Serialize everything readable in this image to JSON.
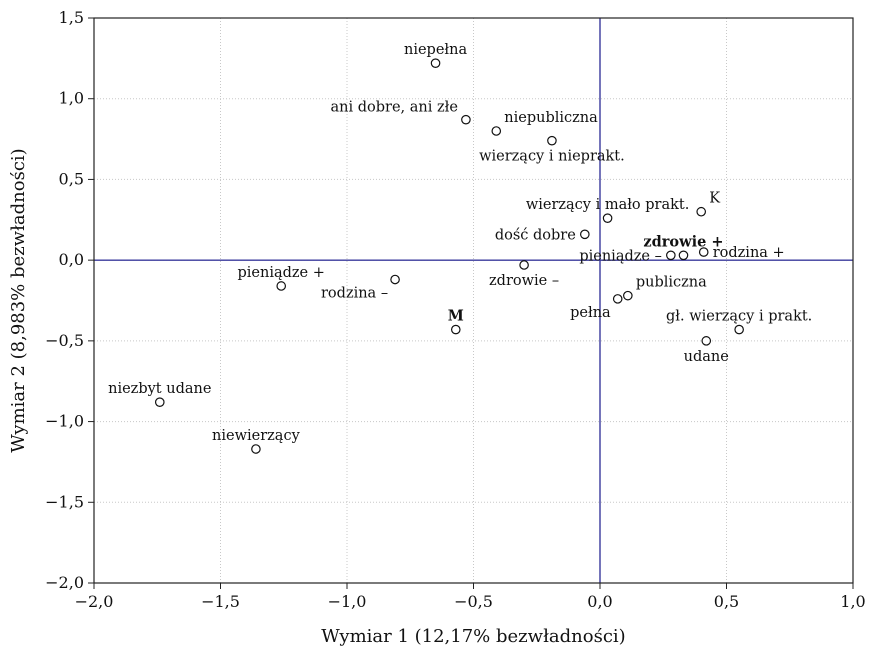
{
  "chart_data": {
    "type": "scatter",
    "title": "",
    "xlabel": "Wymiar 1 (12,17% bezwładności)",
    "ylabel": "Wymiar 2 (8,983% bezwładności)",
    "xlim": [
      -2.0,
      1.0
    ],
    "ylim": [
      -2.0,
      1.5
    ],
    "xticks": [
      -2.0,
      -1.5,
      -1.0,
      -0.5,
      0.0,
      0.5,
      1.0
    ],
    "xtick_labels": [
      "−2,0",
      "−1,5",
      "−1,0",
      "−0,5",
      "0,0",
      "0,5",
      "1,0"
    ],
    "yticks": [
      -2.0,
      -1.5,
      -1.0,
      -0.5,
      0.0,
      0.5,
      1.0,
      1.5
    ],
    "ytick_labels": [
      "−2,0",
      "−1,5",
      "−1,0",
      "−0,5",
      "0,0",
      "0,5",
      "1,0",
      "1,5"
    ],
    "grid": true,
    "reference_lines": {
      "x": 0,
      "y": 0,
      "color": "#3a3a9c"
    },
    "points": [
      {
        "label": "niepełna",
        "x": -0.65,
        "y": 1.22,
        "anchor": "middle",
        "pos": "above",
        "bold": false
      },
      {
        "label": "ani dobre, ani złe",
        "x": -0.53,
        "y": 0.87,
        "anchor": "end",
        "pos": "above-left",
        "bold": false
      },
      {
        "label": "niepubliczna",
        "x": -0.41,
        "y": 0.8,
        "anchor": "start",
        "pos": "above-right",
        "bold": false
      },
      {
        "label": "wierzący i nieprakt.",
        "x": -0.19,
        "y": 0.74,
        "anchor": "middle",
        "pos": "below",
        "bold": false
      },
      {
        "label": "wierzący i mało prakt.",
        "x": 0.03,
        "y": 0.26,
        "anchor": "middle",
        "pos": "above",
        "bold": false
      },
      {
        "label": "K",
        "x": 0.4,
        "y": 0.3,
        "anchor": "start",
        "pos": "above-right",
        "bold": false
      },
      {
        "label": "dość dobre",
        "x": -0.06,
        "y": 0.16,
        "anchor": "end",
        "pos": "left",
        "bold": false
      },
      {
        "label": "zdrowie +",
        "x": 0.33,
        "y": 0.03,
        "anchor": "middle",
        "pos": "above",
        "bold": true
      },
      {
        "label": "pieniądze –",
        "x": 0.28,
        "y": 0.03,
        "anchor": "end",
        "pos": "left",
        "bold": false
      },
      {
        "label": "rodzina +",
        "x": 0.41,
        "y": 0.05,
        "anchor": "start",
        "pos": "right",
        "bold": false
      },
      {
        "label": "zdrowie –",
        "x": -0.3,
        "y": -0.03,
        "anchor": "middle",
        "pos": "below",
        "bold": false
      },
      {
        "label": "publiczna",
        "x": 0.11,
        "y": -0.22,
        "anchor": "start",
        "pos": "above-right",
        "bold": false
      },
      {
        "label": "pełna",
        "x": 0.07,
        "y": -0.24,
        "anchor": "end",
        "pos": "below-left",
        "bold": false
      },
      {
        "label": "gł. wierzący i prakt.",
        "x": 0.55,
        "y": -0.43,
        "anchor": "middle",
        "pos": "above",
        "bold": false
      },
      {
        "label": "udane",
        "x": 0.42,
        "y": -0.5,
        "anchor": "middle",
        "pos": "below",
        "bold": false
      },
      {
        "label": "pieniądze +",
        "x": -1.26,
        "y": -0.16,
        "anchor": "middle",
        "pos": "above",
        "bold": false
      },
      {
        "label": "rodzina –",
        "x": -0.81,
        "y": -0.12,
        "anchor": "end",
        "pos": "below-left",
        "bold": false
      },
      {
        "label": "M",
        "x": -0.57,
        "y": -0.43,
        "anchor": "middle",
        "pos": "above",
        "bold": true
      },
      {
        "label": "niezbyt udane",
        "x": -1.74,
        "y": -0.88,
        "anchor": "middle",
        "pos": "above",
        "bold": false
      },
      {
        "label": "niewierzący",
        "x": -1.36,
        "y": -1.17,
        "anchor": "middle",
        "pos": "above",
        "bold": false
      }
    ]
  }
}
